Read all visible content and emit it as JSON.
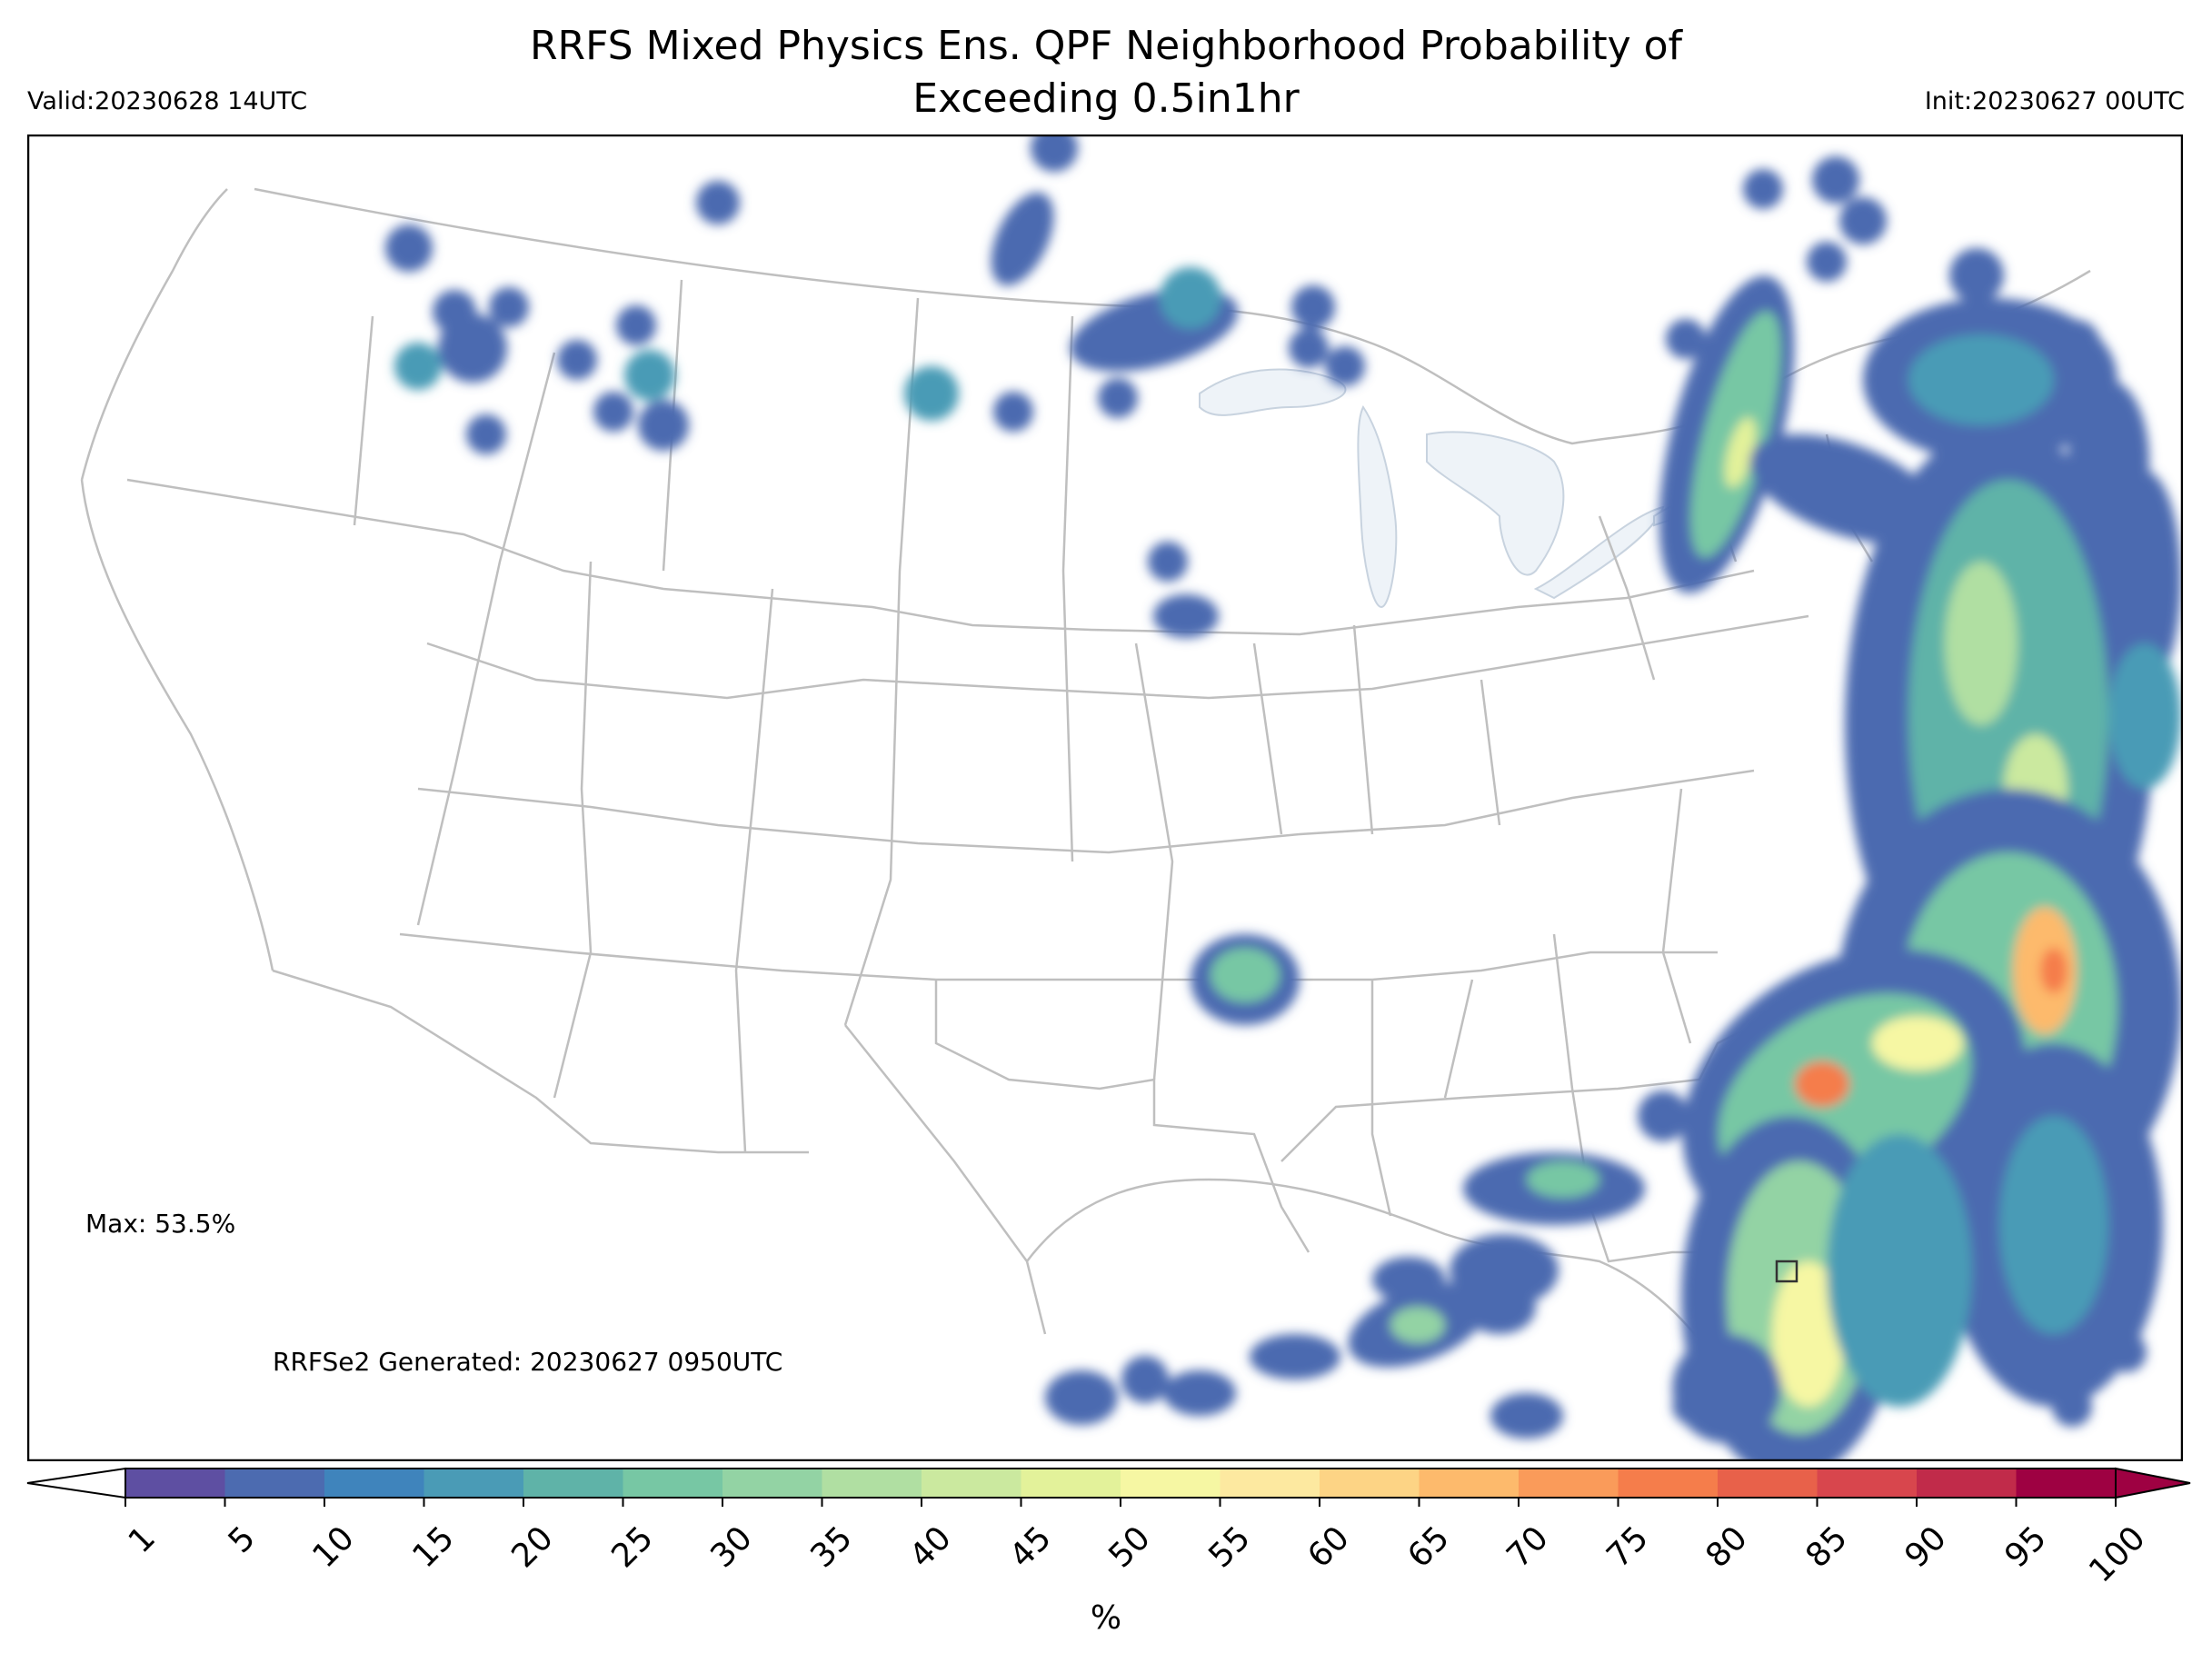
{
  "header": {
    "title_line1": "RRFS Mixed Physics Ens. QPF Neighborhood Probability of",
    "title_line2": "Exceeding 0.5in1hr",
    "valid": "Valid:20230628 14UTC",
    "init": "Init:20230627 00UTC"
  },
  "annotations": {
    "max": "Max: 53.5%",
    "generated": "RRFSe2 Generated: 20230627 0950UTC"
  },
  "colorbar": {
    "unit": "%",
    "ticks": [
      "1",
      "5",
      "10",
      "15",
      "20",
      "25",
      "30",
      "35",
      "40",
      "45",
      "50",
      "55",
      "60",
      "65",
      "70",
      "75",
      "80",
      "85",
      "90",
      "95",
      "100"
    ],
    "colors": [
      "#5e4fa2",
      "#4c6bb0",
      "#3f84bc",
      "#4a9bb6",
      "#5fb3a8",
      "#77c7a4",
      "#93d3a4",
      "#b0dfa2",
      "#cbe99f",
      "#e3f29a",
      "#f6f7a3",
      "#fde9a0",
      "#fdd485",
      "#fdba6c",
      "#fa9b5a",
      "#f57d4b",
      "#e8614a",
      "#d8464d",
      "#c12b4a",
      "#9e0142"
    ],
    "under_color": "#ffffff",
    "over_color": "#9e0142"
  },
  "map": {
    "background": "#ffffff",
    "lake_color": "#eef3f8",
    "border_color": "#bfbfbf"
  }
}
